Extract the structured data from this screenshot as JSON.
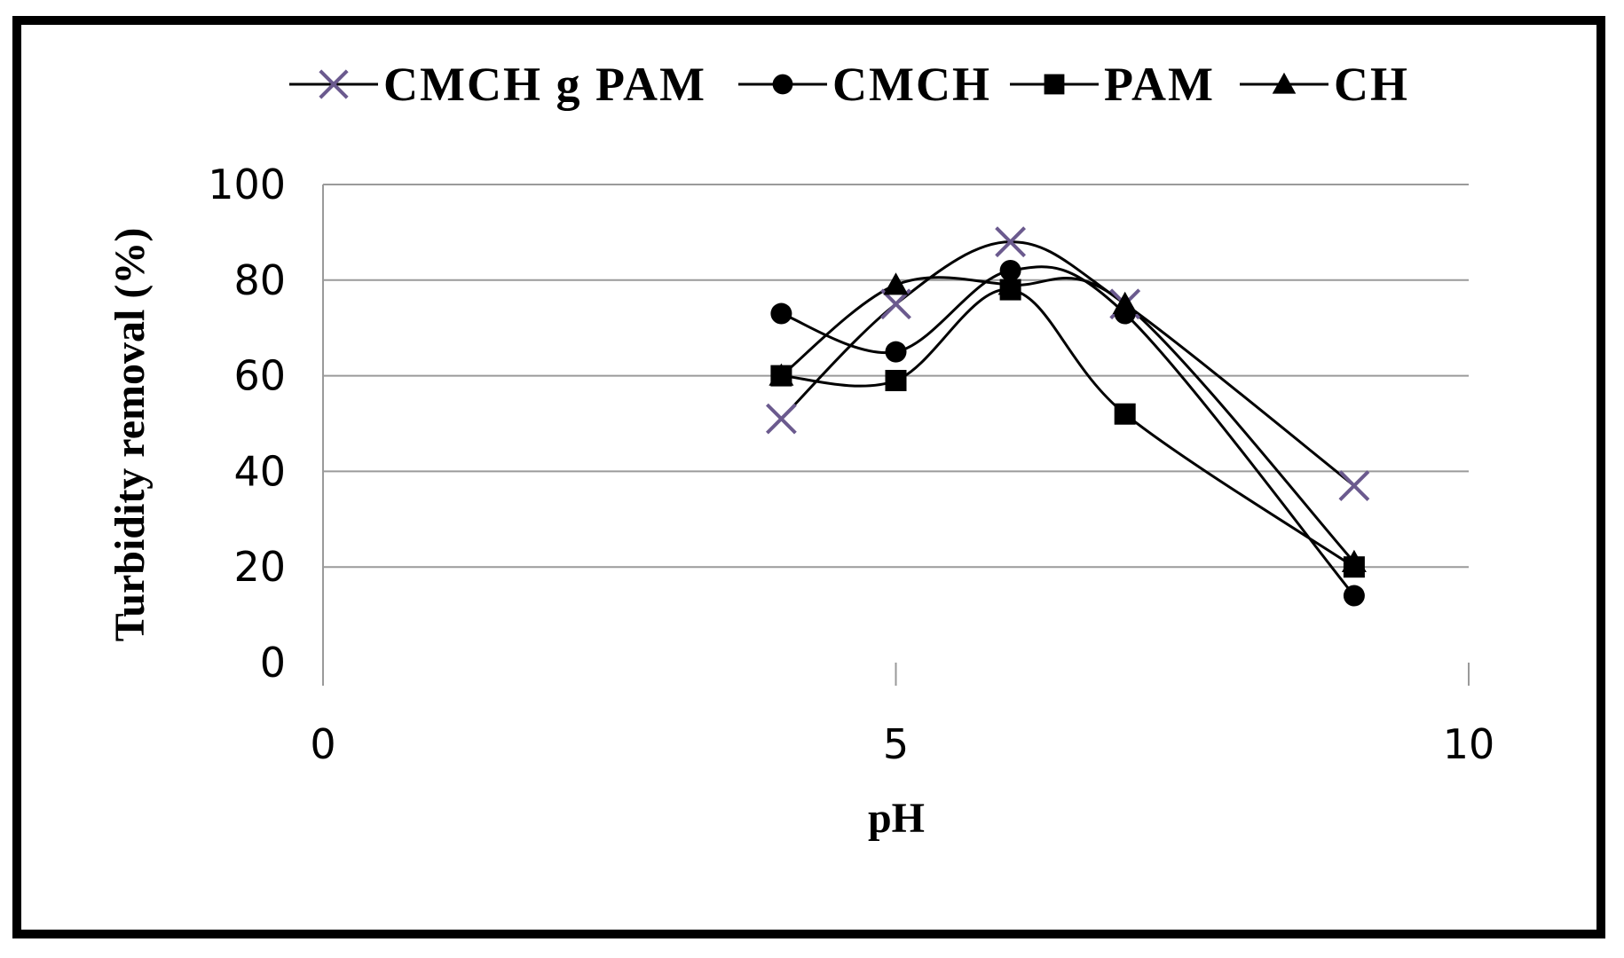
{
  "chart_data": {
    "type": "scatter",
    "title": "",
    "xlabel": "pH",
    "ylabel": "Turbidity removal (%)",
    "xlim": [
      0,
      10
    ],
    "ylim": [
      0,
      100
    ],
    "x_ticks": [
      0,
      5,
      10
    ],
    "y_ticks": [
      0,
      20,
      40,
      60,
      80,
      100
    ],
    "grid": "horizontal",
    "legend_position": "top",
    "line_style": "smoothed",
    "series": [
      {
        "name": "CMCH g PAM",
        "marker": "x-cross",
        "marker_color": "#6b5a8e",
        "line_color": "#000000",
        "x": [
          4,
          5,
          6,
          7,
          9
        ],
        "y": [
          51,
          75,
          88,
          75,
          37
        ]
      },
      {
        "name": "CMCH",
        "marker": "circle",
        "marker_color": "#000000",
        "line_color": "#000000",
        "x": [
          4,
          5,
          6,
          7,
          9
        ],
        "y": [
          73,
          65,
          82,
          73,
          14
        ]
      },
      {
        "name": "PAM",
        "marker": "square",
        "marker_color": "#000000",
        "line_color": "#000000",
        "x": [
          4,
          5,
          6,
          7,
          9
        ],
        "y": [
          60,
          59,
          78,
          52,
          20
        ]
      },
      {
        "name": "CH",
        "marker": "triangle",
        "marker_color": "#000000",
        "line_color": "#000000",
        "x": [
          4,
          5,
          6,
          7,
          9
        ],
        "y": [
          60,
          79,
          79,
          75,
          21
        ]
      }
    ]
  }
}
